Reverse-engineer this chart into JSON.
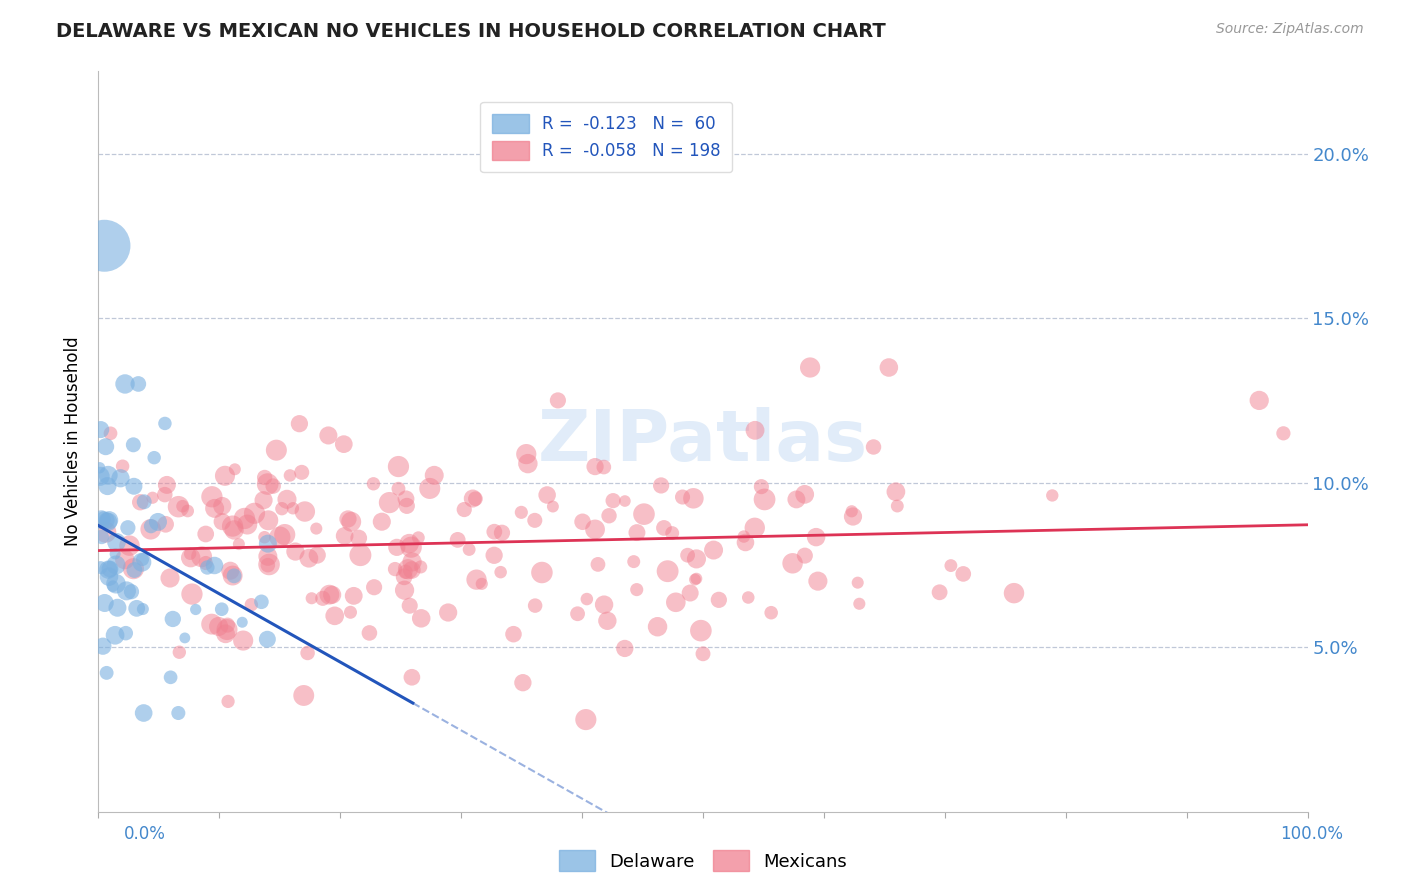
{
  "title": "DELAWARE VS MEXICAN NO VEHICLES IN HOUSEHOLD CORRELATION CHART",
  "source": "Source: ZipAtlas.com",
  "watermark": "ZIPatlas",
  "ylabel": "No Vehicles in Household",
  "ytick_values": [
    0.05,
    0.1,
    0.15,
    0.2
  ],
  "xlim": [
    0.0,
    1.0
  ],
  "ylim": [
    0.0,
    0.225
  ],
  "delaware_color": "#7ab0e0",
  "mexican_color": "#f08090",
  "delaware_line_color": "#2255bb",
  "mexican_line_color": "#dd3355",
  "title_fontsize": 14,
  "source_fontsize": 10,
  "axis_label_color": "#4488cc",
  "del_seed": 42,
  "mex_seed": 99
}
